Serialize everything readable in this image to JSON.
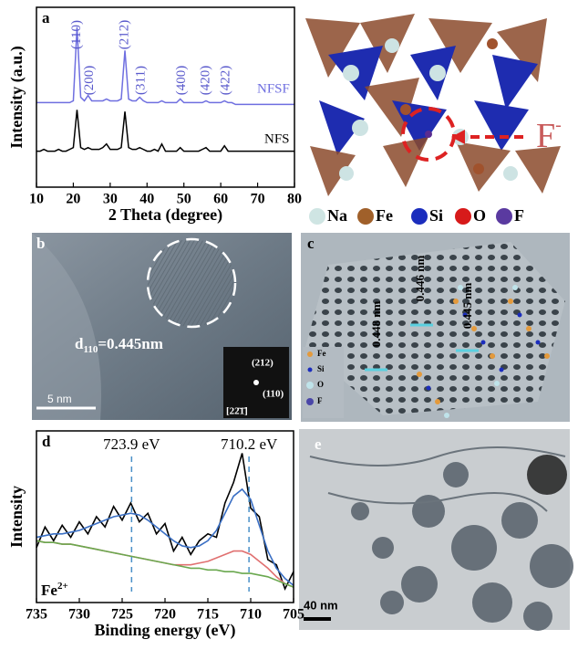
{
  "chart_data": [
    {
      "type": "line",
      "panel_label": "a",
      "x_label": "2 Theta (degree)",
      "y_label": "Intensity (a.u.)",
      "x": [
        10,
        11,
        12,
        13,
        14,
        15,
        16,
        17,
        18,
        19,
        20,
        21,
        22,
        23,
        24,
        25,
        26,
        27,
        28,
        29,
        30,
        31,
        32,
        33,
        34,
        35,
        36,
        37,
        38,
        39,
        40,
        41,
        42,
        43,
        44,
        45,
        46,
        47,
        48,
        49,
        50,
        51,
        52,
        53,
        54,
        55,
        56,
        57,
        58,
        59,
        60,
        61,
        62,
        63,
        64,
        65,
        66,
        67,
        68,
        69,
        70,
        71,
        72,
        73,
        74,
        75,
        76,
        77,
        78,
        79,
        80
      ],
      "xlim": [
        10,
        80
      ],
      "xticks": [
        10,
        20,
        30,
        40,
        50,
        60,
        70,
        80
      ],
      "ylim": [
        0,
        100
      ],
      "series": [
        {
          "name": "NFSF",
          "color": "#6f6fe0",
          "values": [
            47,
            47,
            47,
            47,
            47,
            47,
            47,
            47,
            47,
            47,
            48,
            89,
            50,
            48,
            51,
            48,
            48,
            48,
            48,
            49,
            48,
            48,
            48,
            49,
            76,
            49,
            48,
            48,
            50,
            48,
            47,
            47,
            47,
            47,
            48,
            47,
            47,
            47,
            47,
            49,
            47,
            47,
            47,
            47,
            47,
            47,
            48,
            47,
            47,
            47,
            47,
            48,
            47,
            47,
            46,
            46,
            46,
            46,
            46,
            46,
            46,
            46,
            46,
            46,
            46,
            46,
            46,
            46,
            46,
            46,
            46
          ]
        },
        {
          "name": "NFS",
          "color": "#000000",
          "values": [
            20,
            20,
            21,
            20,
            20,
            20,
            21,
            20,
            20,
            21,
            22,
            43,
            22,
            21,
            22,
            21,
            21,
            21,
            22,
            24,
            21,
            21,
            21,
            22,
            42,
            22,
            21,
            21,
            22,
            21,
            20,
            20,
            21,
            20,
            24,
            20,
            20,
            20,
            20,
            22,
            20,
            20,
            20,
            20,
            20,
            21,
            22,
            20,
            20,
            20,
            20,
            23,
            20,
            20,
            20,
            20,
            20,
            20,
            20,
            20,
            20,
            20,
            20,
            20,
            20,
            20,
            20,
            20,
            20,
            20,
            20
          ]
        }
      ],
      "annotations": [
        {
          "value": 21,
          "label": "(110)"
        },
        {
          "value": 24.5,
          "label": "(200)"
        },
        {
          "value": 34,
          "label": "(212)"
        },
        {
          "value": 38.5,
          "label": "(311)"
        },
        {
          "value": 49.5,
          "label": "(400)"
        },
        {
          "value": 56,
          "label": "(420)"
        },
        {
          "value": 61.5,
          "label": "(422)"
        }
      ]
    },
    {
      "type": "line",
      "panel_label": "d",
      "x_label": "Binding energy (eV)",
      "y_label": "Intensity",
      "x": [
        735,
        734,
        733,
        732,
        731,
        730,
        729,
        728,
        727,
        726,
        725,
        724,
        723,
        722,
        721,
        720,
        719,
        718,
        717,
        716,
        715,
        714,
        713,
        712,
        711,
        710,
        709,
        708,
        707,
        706,
        705
      ],
      "xlim": [
        735,
        705
      ],
      "xticks": [
        735,
        730,
        725,
        720,
        715,
        710,
        705
      ],
      "ylim": [
        0,
        100
      ],
      "series": [
        {
          "color": "#000000",
          "values": [
            32,
            44,
            36,
            45,
            38,
            47,
            40,
            50,
            44,
            56,
            48,
            58,
            47,
            52,
            40,
            46,
            30,
            38,
            28,
            36,
            40,
            38,
            58,
            70,
            87,
            55,
            50,
            25,
            22,
            8,
            18
          ]
        },
        {
          "color": "#3a6fc4",
          "values": [
            38,
            39,
            40,
            40,
            41,
            42,
            44,
            46,
            48,
            50,
            51,
            52,
            51,
            48,
            44,
            40,
            36,
            33,
            32,
            33,
            36,
            42,
            52,
            62,
            66,
            60,
            45,
            30,
            20,
            14,
            10
          ]
        },
        {
          "color": "#e07070",
          "values": [
            36,
            35,
            35,
            34,
            34,
            33,
            32,
            31,
            30,
            29,
            28,
            27,
            26,
            25,
            24,
            23,
            22,
            22,
            22,
            23,
            24,
            26,
            28,
            30,
            30,
            28,
            24,
            20,
            15,
            11,
            9
          ]
        },
        {
          "color": "#6aa84f",
          "values": [
            36,
            35,
            35,
            34,
            34,
            33,
            32,
            31,
            30,
            29,
            28,
            27,
            26,
            25,
            24,
            23,
            22,
            21,
            20,
            20,
            19,
            19,
            18,
            18,
            17,
            17,
            16,
            15,
            13,
            11,
            9
          ]
        }
      ],
      "annotations": [
        {
          "value": 723.9,
          "label": "723.9 eV"
        },
        {
          "value": 710.2,
          "label": "710.2 eV"
        }
      ],
      "species": {
        "base": "Fe",
        "sup": "2+"
      }
    }
  ],
  "structure": {
    "legend": [
      "Na",
      "Fe",
      "Si",
      "O",
      "F"
    ],
    "ion": {
      "base": "F",
      "sup": "-"
    }
  },
  "panel_b": {
    "label": "b",
    "spacing": {
      "base": "d",
      "sub": "110",
      "rest": "=0.445nm"
    },
    "scale_bar": "5 nm",
    "inset": [
      "(212)",
      "(110)",
      "[22̄1̄]"
    ]
  },
  "panel_c": {
    "label": "c",
    "spacings": [
      "0.448 nm",
      "0.446 nm",
      "0.445 nm"
    ],
    "legend": [
      "Fe",
      "Si",
      "O",
      "F"
    ]
  },
  "panel_e": {
    "label": "e",
    "scale_bar": "40 nm"
  }
}
